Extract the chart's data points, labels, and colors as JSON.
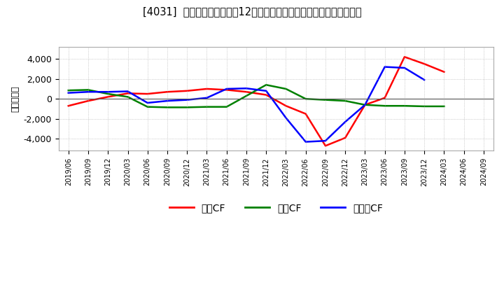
{
  "title": "[4031]  キャッシュフローの12か月移動合計の対前年同期増減額の推移",
  "ylabel": "（百万円）",
  "background_color": "#ffffff",
  "plot_bg_color": "#ffffff",
  "grid_color": "#aaaaaa",
  "ylim": [
    -5200,
    5200
  ],
  "yticks": [
    -4000,
    -2000,
    0,
    2000,
    4000
  ],
  "x_labels": [
    "2019/06",
    "2019/09",
    "2019/12",
    "2020/03",
    "2020/06",
    "2020/09",
    "2020/12",
    "2021/03",
    "2021/06",
    "2021/09",
    "2021/12",
    "2022/03",
    "2022/06",
    "2022/09",
    "2022/12",
    "2023/03",
    "2023/06",
    "2023/09",
    "2023/12",
    "2024/03",
    "2024/06",
    "2024/09"
  ],
  "series": {
    "営業CF": {
      "color": "#ff0000",
      "values": [
        -700,
        -200,
        200,
        550,
        500,
        700,
        800,
        1000,
        900,
        700,
        400,
        -700,
        -1500,
        -4700,
        -3900,
        -600,
        100,
        4200,
        3500,
        2700,
        null,
        null
      ]
    },
    "投資CF": {
      "color": "#008000",
      "values": [
        850,
        900,
        500,
        200,
        -800,
        -850,
        -850,
        -800,
        -800,
        300,
        1400,
        1000,
        0,
        -100,
        -200,
        -600,
        -700,
        -700,
        -750,
        -750,
        null,
        null
      ]
    },
    "フリーCF": {
      "color": "#0000ff",
      "values": [
        600,
        700,
        700,
        750,
        -400,
        -200,
        -100,
        100,
        1000,
        1050,
        800,
        -1900,
        -4300,
        -4200,
        -2300,
        -600,
        3200,
        3100,
        1900,
        null,
        null,
        null
      ]
    }
  },
  "legend_labels": [
    "営業CF",
    "投資CF",
    "フリーCF"
  ],
  "legend_colors": [
    "#ff0000",
    "#008000",
    "#0000ff"
  ]
}
